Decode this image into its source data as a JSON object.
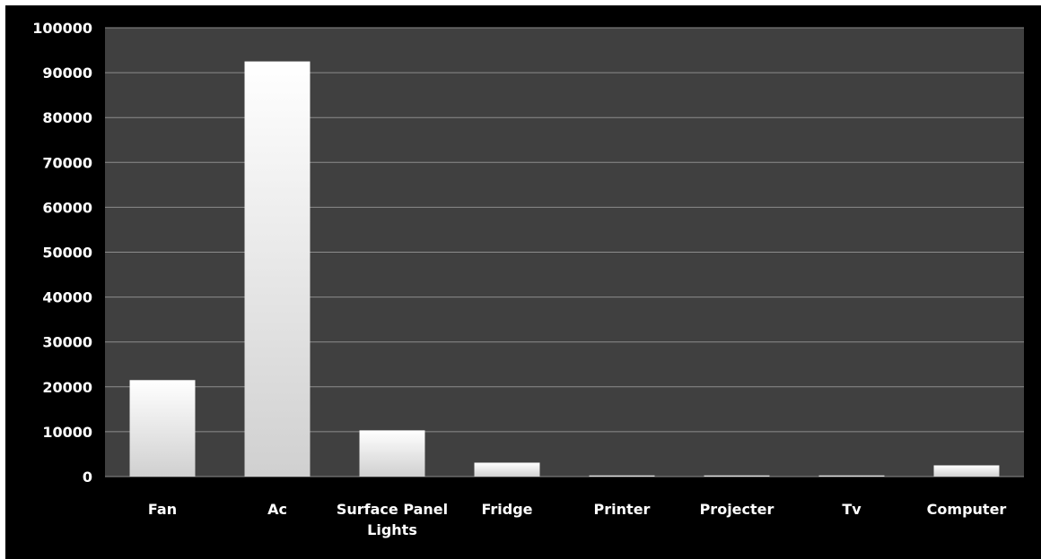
{
  "chart_data": {
    "type": "bar",
    "title": "",
    "xlabel": "",
    "ylabel": "",
    "categories": [
      "Fan",
      "Ac",
      "Surface Panel Lights",
      "Fridge",
      "Printer",
      "Projecter",
      "Tv",
      "Computer"
    ],
    "category_lines": [
      [
        "Fan"
      ],
      [
        "Ac"
      ],
      [
        "Surface Panel",
        "Lights"
      ],
      [
        "Fridge"
      ],
      [
        "Printer"
      ],
      [
        "Projecter"
      ],
      [
        "Tv"
      ],
      [
        "Computer"
      ]
    ],
    "values": [
      21500,
      92500,
      10300,
      3100,
      250,
      250,
      250,
      2500
    ],
    "ylim": [
      0,
      100000
    ],
    "yticks": [
      0,
      10000,
      20000,
      30000,
      40000,
      50000,
      60000,
      70000,
      80000,
      90000,
      100000
    ],
    "grid": true,
    "legend": "none",
    "colors": {
      "background": "#000000",
      "plot_area": "#404040",
      "gridline": "#8c8c8c",
      "bar_top": "#ffffff",
      "bar_bottom": "#d0d0d0",
      "text": "#ffffff"
    }
  }
}
